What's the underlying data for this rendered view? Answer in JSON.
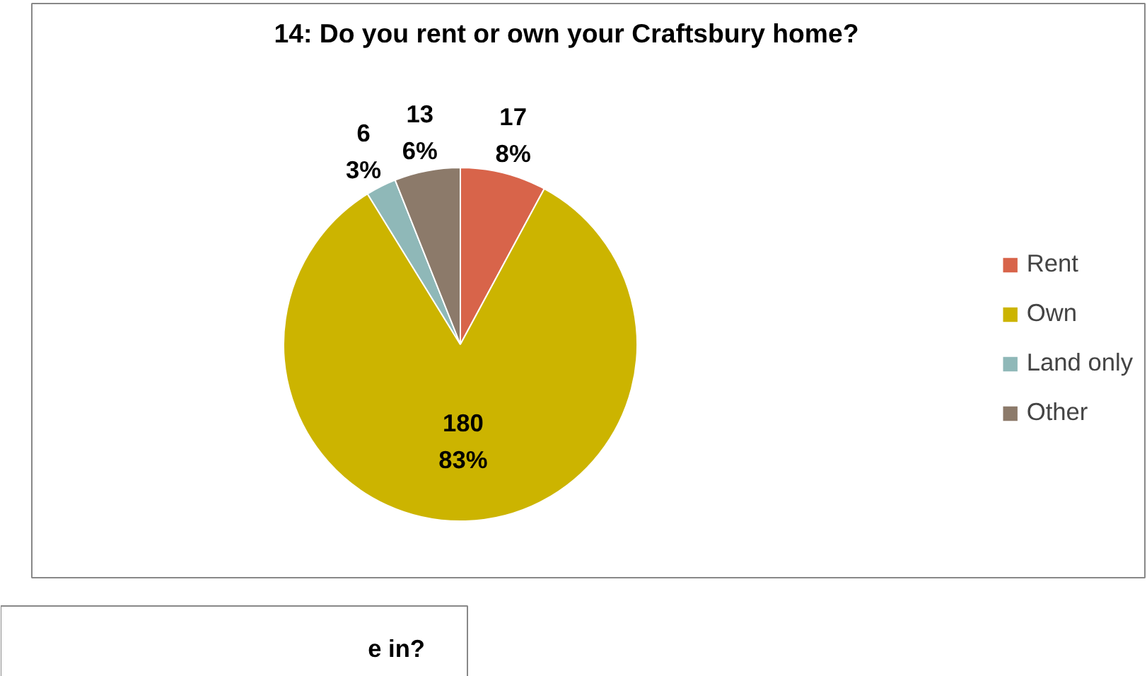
{
  "chart_data": {
    "type": "pie",
    "title": "14: Do you rent or own your Craftsbury home?",
    "categories": [
      "Rent",
      "Own",
      "Land only",
      "Other"
    ],
    "values": [
      17,
      180,
      6,
      13
    ],
    "colors": [
      "#d8644a",
      "#ccb400",
      "#8fb8b8",
      "#8c7a6a"
    ],
    "value_labels": [
      "17\n8%",
      "180\n83%",
      "6\n3%",
      "13\n6%"
    ],
    "legend": "right",
    "annotations": [
      "e in?"
    ]
  }
}
